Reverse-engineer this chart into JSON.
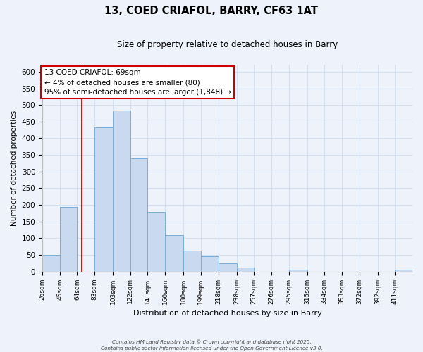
{
  "title": "13, COED CRIAFOL, BARRY, CF63 1AT",
  "subtitle": "Size of property relative to detached houses in Barry",
  "xlabel": "Distribution of detached houses by size in Barry",
  "ylabel": "Number of detached properties",
  "bar_color": "#c9d9f0",
  "bar_edge_color": "#7badd6",
  "bin_labels": [
    "26sqm",
    "45sqm",
    "64sqm",
    "83sqm",
    "103sqm",
    "122sqm",
    "141sqm",
    "160sqm",
    "180sqm",
    "199sqm",
    "218sqm",
    "238sqm",
    "257sqm",
    "276sqm",
    "295sqm",
    "315sqm",
    "334sqm",
    "353sqm",
    "372sqm",
    "392sqm",
    "411sqm"
  ],
  "bin_edges": [
    26,
    45,
    64,
    83,
    103,
    122,
    141,
    160,
    180,
    199,
    218,
    238,
    257,
    276,
    295,
    315,
    334,
    353,
    372,
    392,
    411,
    430
  ],
  "bar_heights": [
    50,
    193,
    0,
    432,
    483,
    340,
    178,
    110,
    62,
    45,
    25,
    11,
    0,
    0,
    5,
    0,
    0,
    0,
    0,
    0,
    5
  ],
  "ylim": [
    0,
    620
  ],
  "yticks": [
    0,
    50,
    100,
    150,
    200,
    250,
    300,
    350,
    400,
    450,
    500,
    550,
    600
  ],
  "property_line_x": 69,
  "property_line_color": "#cc0000",
  "annotation_title": "13 COED CRIAFOL: 69sqm",
  "annotation_line1": "← 4% of detached houses are smaller (80)",
  "annotation_line2": "95% of semi-detached houses are larger (1,848) →",
  "annotation_box_color": "#ffffff",
  "annotation_box_edge": "#cc0000",
  "grid_color": "#d4e0f0",
  "background_color": "#eef2fb",
  "footer_line1": "Contains HM Land Registry data © Crown copyright and database right 2025.",
  "footer_line2": "Contains public sector information licensed under the Open Government Licence v3.0."
}
